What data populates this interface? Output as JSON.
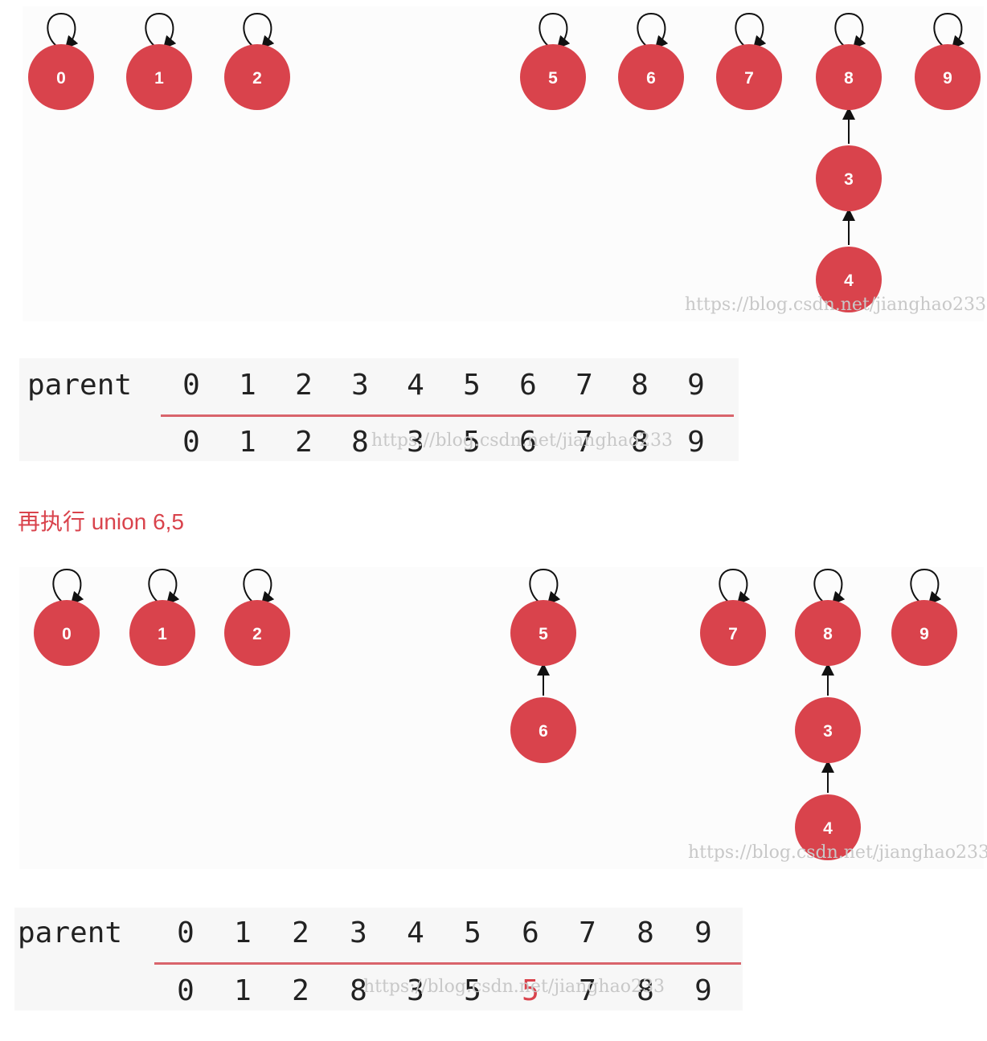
{
  "top_graph": {
    "nodes": [
      "0",
      "1",
      "2",
      "5",
      "6",
      "7",
      "8",
      "9",
      "3",
      "4"
    ],
    "edges": [
      [
        "3",
        "8"
      ],
      [
        "4",
        "3"
      ]
    ],
    "watermark": "https://blog.csdn.net/jianghao233"
  },
  "top_table": {
    "label": "parent",
    "index": [
      "0",
      "1",
      "2",
      "3",
      "4",
      "5",
      "6",
      "7",
      "8",
      "9"
    ],
    "parent": [
      "0",
      "1",
      "2",
      "8",
      "3",
      "5",
      "6",
      "7",
      "8",
      "9"
    ],
    "watermark": "https://blog.csdn.net/jianghao233"
  },
  "caption": "再执行 union 6,5",
  "bottom_graph": {
    "nodes": [
      "0",
      "1",
      "2",
      "5",
      "7",
      "8",
      "9",
      "6",
      "3",
      "4"
    ],
    "edges": [
      [
        "6",
        "5"
      ],
      [
        "3",
        "8"
      ],
      [
        "4",
        "3"
      ]
    ],
    "watermark": "https://blog.csdn.net/jianghao233"
  },
  "bottom_table": {
    "label": "parent",
    "index": [
      "0",
      "1",
      "2",
      "3",
      "4",
      "5",
      "6",
      "7",
      "8",
      "9"
    ],
    "parent": [
      "0",
      "1",
      "2",
      "8",
      "3",
      "5",
      "5",
      "7",
      "8",
      "9"
    ],
    "highlight_index": 6,
    "watermark": "https://blog.csdn.net/jianghao233"
  },
  "colors": {
    "node": "#d9434c",
    "highlight": "#d9434c",
    "rule": "#d9646c"
  }
}
